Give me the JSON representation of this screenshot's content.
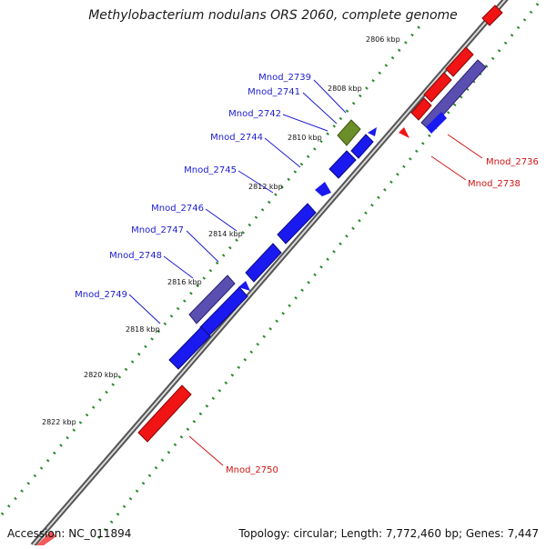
{
  "title": "Methylobacterium nodulans ORS 2060, complete genome",
  "footer": {
    "accession": "Accession: NC_011894",
    "summary": "Topology: circular; Length: 7,772,460 bp; Genes: 7,447"
  },
  "colors": {
    "forward_gene": "#1a1af0",
    "reverse_gene": "#f01414",
    "label_forward": "#1c1ccf",
    "label_reverse": "#d01414",
    "backbone": "#888888",
    "ticks": "#2a8a2a",
    "highlight_green": "#6b8f28",
    "highlight_purple": "#5a4fb0"
  },
  "kbp_labels": [
    "2806 kbp",
    "2808 kbp",
    "2810 kbp",
    "2812 kbp",
    "2814 kbp",
    "2816 kbp",
    "2818 kbp",
    "2820 kbp",
    "2822 kbp"
  ],
  "gene_labels": {
    "g2739": "Mnod_2739",
    "g2741": "Mnod_2741",
    "g2742": "Mnod_2742",
    "g2744": "Mnod_2744",
    "g2745": "Mnod_2745",
    "g2746": "Mnod_2746",
    "g2747": "Mnod_2747",
    "g2748": "Mnod_2748",
    "g2749": "Mnod_2749",
    "g2736": "Mnod_2736",
    "g2738": "Mnod_2738",
    "g2750": "Mnod_2750"
  }
}
